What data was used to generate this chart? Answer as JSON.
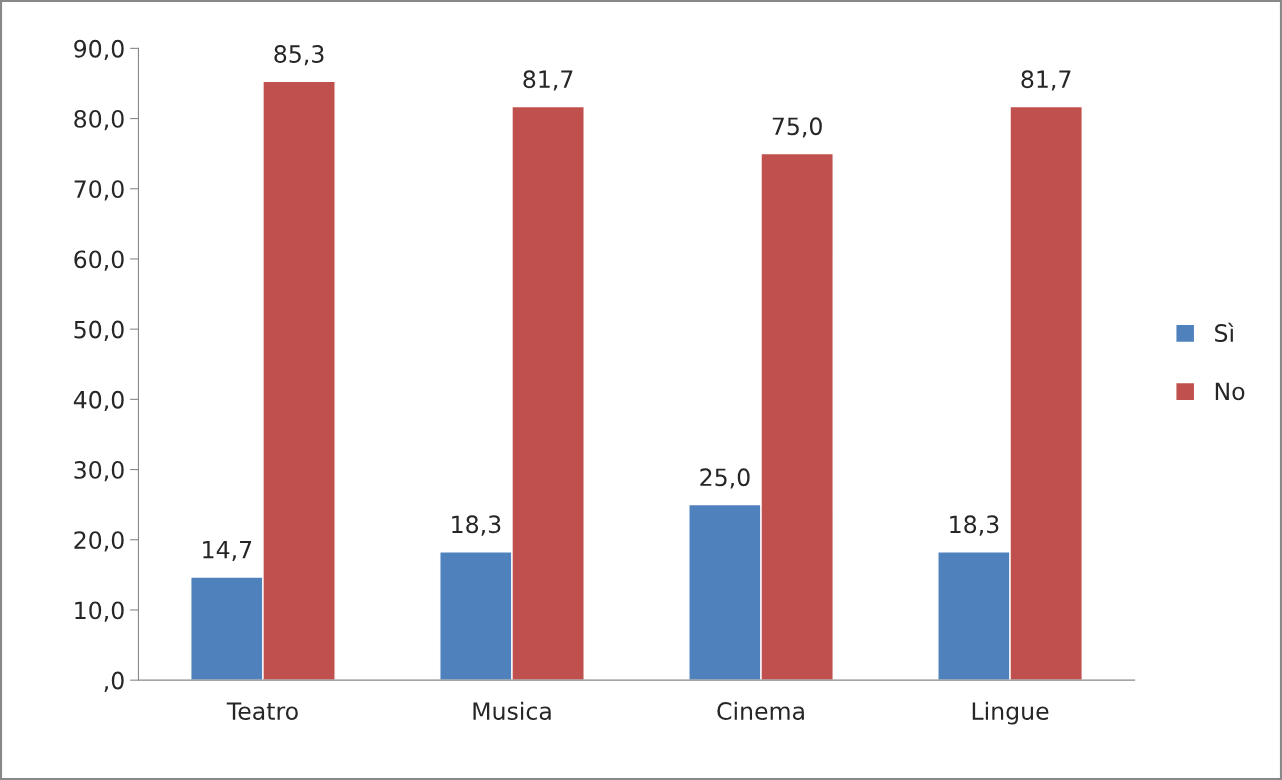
{
  "chart_data": {
    "type": "bar",
    "categories": [
      "Teatro",
      "Musica",
      "Cinema",
      "Lingue"
    ],
    "series": [
      {
        "name": "Sì",
        "color": "#4f81bd",
        "values": [
          14.7,
          18.3,
          25.0,
          18.3
        ],
        "value_labels": [
          "14,7",
          "18,3",
          "25,0",
          "18,3"
        ]
      },
      {
        "name": "No",
        "color": "#c0504d",
        "values": [
          85.3,
          81.7,
          75.0,
          81.7
        ],
        "value_labels": [
          "85,3",
          "81,7",
          "75,0",
          "81,7"
        ]
      }
    ],
    "ylim": [
      0,
      90
    ],
    "yticks": [
      {
        "value": 0,
        "label": ",0"
      },
      {
        "value": 10,
        "label": "10,0"
      },
      {
        "value": 20,
        "label": "20,0"
      },
      {
        "value": 30,
        "label": "30,0"
      },
      {
        "value": 40,
        "label": "40,0"
      },
      {
        "value": 50,
        "label": "50,0"
      },
      {
        "value": 60,
        "label": "60,0"
      },
      {
        "value": 70,
        "label": "70,0"
      },
      {
        "value": 80,
        "label": "80,0"
      },
      {
        "value": 90,
        "label": "90,0"
      }
    ],
    "grid": false,
    "legend": "right"
  }
}
